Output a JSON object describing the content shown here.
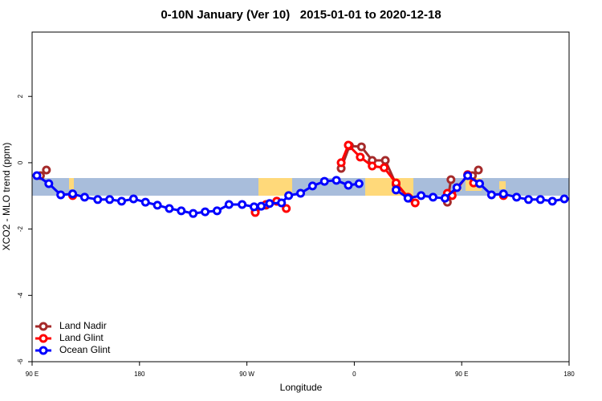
{
  "chart_data": {
    "type": "line",
    "title": "0-10N January (Ver 10)   2015-01-01 to 2020-12-18",
    "xlabel": "Longitude",
    "ylabel": "XCO2 - MLO trend (ppm)",
    "xlim": [
      90,
      540
    ],
    "ylim": [
      -6,
      3.94
    ],
    "xticks": [
      {
        "value": 90,
        "label": "90 E"
      },
      180,
      {
        "value": 270,
        "label": "90 W"
      },
      {
        "value": 360,
        "label": "0"
      },
      {
        "value": 450,
        "label": "90 E"
      },
      {
        "value": 540,
        "label": "180"
      }
    ],
    "yticks": [
      -6,
      -4,
      -2,
      0,
      2
    ],
    "legend": "bottom-left",
    "series": [
      {
        "name": "Land Nadir",
        "color": "#a52a2a",
        "x": [
          97,
          102,
          null,
          277,
          286,
          295,
          null,
          349,
          356,
          366,
          375,
          386,
          395,
          406,
          null,
          438,
          441,
          null,
          459,
          464
        ],
        "values": [
          -0.39,
          -0.22,
          null,
          -1.48,
          -1.28,
          -1.16,
          null,
          -0.17,
          0.51,
          0.48,
          0.07,
          0.07,
          -0.65,
          -1.07,
          null,
          -1.19,
          -0.51,
          null,
          -0.39,
          -0.22
        ]
      },
      {
        "name": "Land Glint",
        "color": "#ff0000",
        "x": [
          124,
          null,
          277,
          286,
          295,
          303,
          null,
          349,
          355,
          365,
          375,
          385,
          395,
          405,
          411,
          null,
          438,
          442,
          455,
          460,
          null,
          485
        ],
        "values": [
          -0.99,
          null,
          -1.5,
          -1.26,
          -1.16,
          -1.38,
          null,
          0,
          0.53,
          0.17,
          -0.1,
          -0.15,
          -0.61,
          -1.04,
          -1.21,
          null,
          -0.92,
          -0.99,
          -0.36,
          -0.61,
          null,
          -0.99
        ]
      },
      {
        "name": "Ocean Glint",
        "color": "#0000ff",
        "x": [
          94,
          104,
          114,
          124,
          134,
          145,
          155,
          165,
          175,
          185,
          195,
          205,
          215,
          225,
          235,
          245,
          255,
          266,
          276,
          282,
          289,
          299,
          305,
          315,
          325,
          335,
          345,
          355,
          364,
          null,
          395,
          405,
          416,
          426,
          436,
          446,
          455,
          465,
          475,
          485,
          496,
          506,
          516,
          526,
          536
        ],
        "values": [
          -0.39,
          -0.63,
          -0.97,
          -0.94,
          -1.04,
          -1.11,
          -1.11,
          -1.16,
          -1.09,
          -1.19,
          -1.28,
          -1.38,
          -1.45,
          -1.53,
          -1.48,
          -1.45,
          -1.26,
          -1.26,
          -1.33,
          -1.31,
          -1.23,
          -1.21,
          -0.99,
          -0.92,
          -0.7,
          -0.56,
          -0.53,
          -0.68,
          -0.63,
          null,
          -0.82,
          -1.07,
          -0.99,
          -1.04,
          -1.07,
          -0.75,
          -0.39,
          -0.63,
          -0.97,
          -0.94,
          -1.04,
          -1.11,
          -1.11,
          -1.16,
          -1.09
        ]
      }
    ]
  }
}
